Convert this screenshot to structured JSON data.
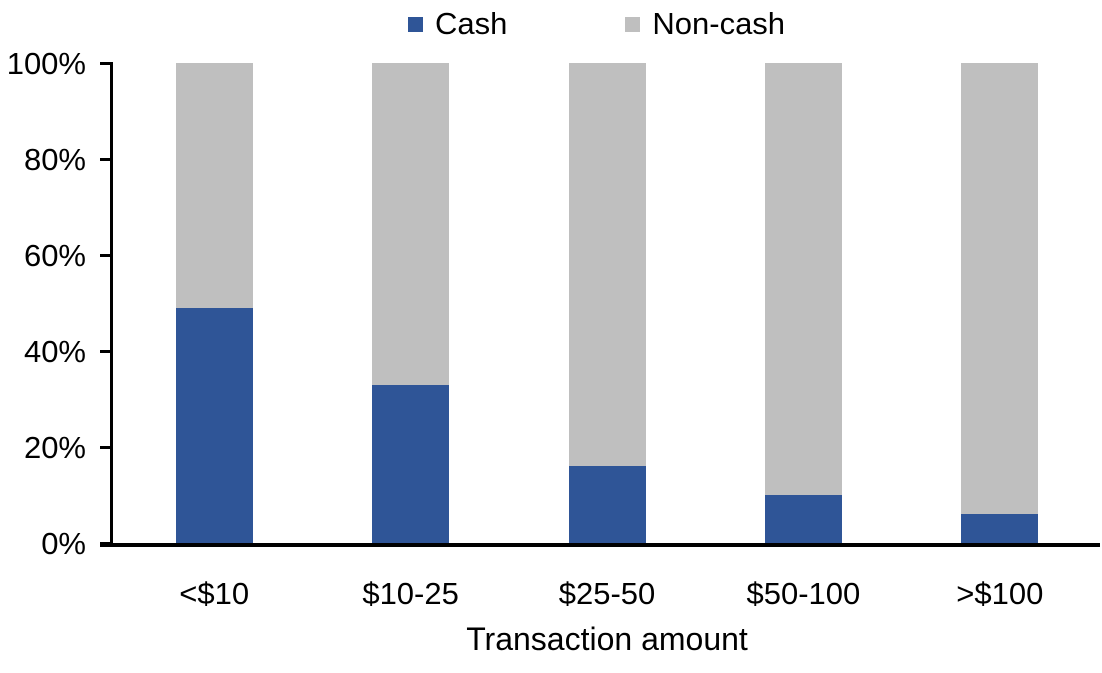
{
  "chart_data": {
    "type": "bar",
    "stacked": true,
    "percent_stacked": true,
    "title": "",
    "xlabel": "Transaction amount",
    "ylabel": "",
    "categories": [
      "<$10",
      "$10-25",
      "$25-50",
      "$50-100",
      ">$100"
    ],
    "series": [
      {
        "name": "Cash",
        "color": "#2F5597",
        "values": [
          49,
          33,
          16,
          10,
          6
        ]
      },
      {
        "name": "Non-cash",
        "color": "#BFBFBF",
        "values": [
          51,
          67,
          84,
          90,
          94
        ]
      }
    ],
    "ylim": [
      0,
      100
    ],
    "yticks": [
      "0%",
      "20%",
      "40%",
      "60%",
      "80%",
      "100%"
    ],
    "grid": false,
    "legend_position": "top-center",
    "axis_color": "#000000",
    "background_color": "#FFFFFF"
  }
}
